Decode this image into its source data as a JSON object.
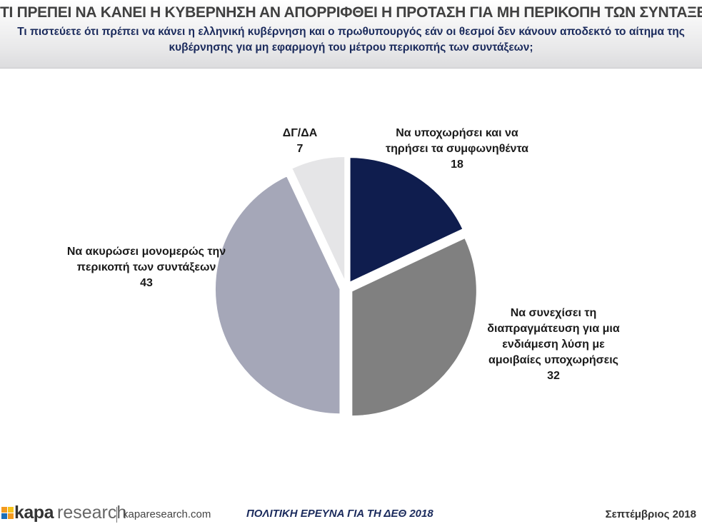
{
  "chart_data": {
    "type": "pie",
    "title": "ΤΙ ΠΡΕΠΕΙ ΝΑ ΚΑΝΕΙ Η ΚΥΒΕΡΝΗΣΗ ΑΝ ΑΠΟΡΡΙΦΘΕΙ Η ΠΡΟΤΑΣΗ ΓΙΑ ΜΗ ΠΕΡΙΚΟΠΗ ΤΩΝ ΣΥΝΤΑΞΕΩΝ",
    "subtitle": "Τι πιστεύετε ότι πρέπει να κάνει η ελληνική κυβέρνηση και ο πρωθυπουργός εάν οι θεσμοί δεν κάνουν αποδεκτό το αίτημα της κυβέρνησης για μη εφαρμογή του μέτρου περικοπής των συντάξεων;",
    "categories": [
      "Να υποχωρήσει και να τηρήσει τα συμφωνηθέντα",
      "Να συνεχίσει τη διαπραγμάτευση για μια ενδιάμεση λύση με αμοιβαίες υποχωρήσεις",
      "Να ακυρώσει μονομερώς την περικοπή των συντάξεων",
      "ΔΓ/ΔΑ"
    ],
    "values": [
      18,
      32,
      43,
      7
    ],
    "colors": [
      "#0f1d4e",
      "#808080",
      "#a5a7b8",
      "#e5e5e7"
    ]
  },
  "footer": {
    "brand_bold": "kapa",
    "brand_light": "research",
    "website": "kaparesearch.com",
    "center": "ΠΟΛΙΤΙΚΗ ΕΡΕΥΝΑ ΓΙΑ ΤΗ ΔΕΘ 2018",
    "date": "Σεπτέμβριος 2018"
  }
}
